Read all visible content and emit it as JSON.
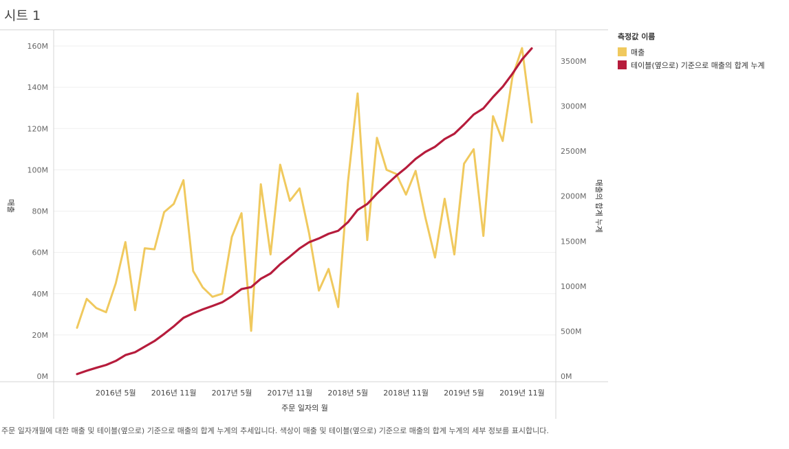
{
  "sheet_title": "시트 1",
  "legend": {
    "title": "측정값 이름",
    "items": [
      {
        "label": "매출",
        "color": "#f0c95e"
      },
      {
        "label": "테이블(옆으로) 기준으로 매출의 합계 누계",
        "color": "#b61c3c"
      }
    ]
  },
  "caption": "주문 일자개월에 대한 매출 및 테이블(옆으로) 기준으로 매출의 합계 누계의 추세입니다. 색상이 매출 및 테이블(옆으로) 기준으로 매출의 합계 누계의 세부 정보를 표시합니다.",
  "chart_data": {
    "type": "line",
    "xlabel": "주문 일자의 월",
    "ylabel_left": "매출",
    "ylabel_right": "매출의 합계 누계",
    "x": [
      "2016-01",
      "2016-02",
      "2016-03",
      "2016-04",
      "2016-05",
      "2016-06",
      "2016-07",
      "2016-08",
      "2016-09",
      "2016-10",
      "2016-11",
      "2016-12",
      "2017-01",
      "2017-02",
      "2017-03",
      "2017-04",
      "2017-05",
      "2017-06",
      "2017-07",
      "2017-08",
      "2017-09",
      "2017-10",
      "2017-11",
      "2017-12",
      "2018-01",
      "2018-02",
      "2018-03",
      "2018-04",
      "2018-05",
      "2018-06",
      "2018-07",
      "2018-08",
      "2018-09",
      "2018-10",
      "2018-11",
      "2018-12",
      "2019-01",
      "2019-02",
      "2019-03",
      "2019-04",
      "2019-05",
      "2019-06",
      "2019-07",
      "2019-08",
      "2019-09",
      "2019-10",
      "2019-11",
      "2019-12"
    ],
    "x_ticks": [
      {
        "x": "2016-05",
        "label": "2016년 5월"
      },
      {
        "x": "2016-11",
        "label": "2016년 11월"
      },
      {
        "x": "2017-05",
        "label": "2017년 5월"
      },
      {
        "x": "2017-11",
        "label": "2017년 11월"
      },
      {
        "x": "2018-05",
        "label": "2018년 5월"
      },
      {
        "x": "2018-11",
        "label": "2018년 11월"
      },
      {
        "x": "2019-05",
        "label": "2019년 5월"
      },
      {
        "x": "2019-11",
        "label": "2019년 11월"
      }
    ],
    "y_left_range": [
      0,
      165000000
    ],
    "y_left_ticks": [
      {
        "value": 0,
        "label": "0M"
      },
      {
        "value": 20000000,
        "label": "20M"
      },
      {
        "value": 40000000,
        "label": "40M"
      },
      {
        "value": 60000000,
        "label": "60M"
      },
      {
        "value": 80000000,
        "label": "80M"
      },
      {
        "value": 100000000,
        "label": "100M"
      },
      {
        "value": 120000000,
        "label": "120M"
      },
      {
        "value": 140000000,
        "label": "140M"
      },
      {
        "value": 160000000,
        "label": "160M"
      }
    ],
    "y_right_range": [
      0,
      3800000000
    ],
    "y_right_ticks": [
      {
        "value": 0,
        "label": "0M"
      },
      {
        "value": 500000000,
        "label": "500M"
      },
      {
        "value": 1000000000,
        "label": "1000M"
      },
      {
        "value": 1500000000,
        "label": "1500M"
      },
      {
        "value": 2000000000,
        "label": "2000M"
      },
      {
        "value": 2500000000,
        "label": "2500M"
      },
      {
        "value": 3000000000,
        "label": "3000M"
      },
      {
        "value": 3500000000,
        "label": "3500M"
      }
    ],
    "grid": true,
    "series": [
      {
        "name": "매출",
        "axis": "left",
        "color": "#f0c95e",
        "values": [
          23500000,
          37500000,
          33000000,
          31000000,
          45000000,
          65000000,
          32000000,
          62000000,
          61500000,
          79500000,
          83500000,
          95000000,
          51000000,
          43000000,
          38500000,
          40000000,
          67500000,
          79000000,
          22000000,
          93000000,
          59000000,
          102500000,
          85000000,
          91000000,
          69000000,
          41500000,
          52000000,
          33500000,
          94000000,
          137000000,
          66000000,
          115500000,
          100000000,
          98000000,
          88000000,
          99500000,
          77000000,
          57500000,
          86000000,
          59000000,
          103000000,
          110000000,
          68000000,
          126000000,
          114000000,
          145000000,
          159000000,
          123000000
        ]
      },
      {
        "name": "테이블(옆으로) 기준으로 매출의 합계 누계",
        "axis": "right",
        "color": "#b61c3c",
        "values": [
          23500000,
          61000000,
          94000000,
          125000000,
          170000000,
          235000000,
          267000000,
          329000000,
          390500000,
          470000000,
          553500000,
          648500000,
          699500000,
          742500000,
          781000000,
          821000000,
          888500000,
          967500000,
          989500000,
          1082500000,
          1141500000,
          1244000000,
          1329000000,
          1420000000,
          1489000000,
          1530500000,
          1582500000,
          1616000000,
          1710000000,
          1847000000,
          1913000000,
          2028500000,
          2128500000,
          2226500000,
          2314500000,
          2414000000,
          2491000000,
          2548500000,
          2634500000,
          2693500000,
          2796500000,
          2906500000,
          2974500000,
          3100500000,
          3214500000,
          3359500000,
          3518500000,
          3641500000
        ]
      }
    ]
  }
}
